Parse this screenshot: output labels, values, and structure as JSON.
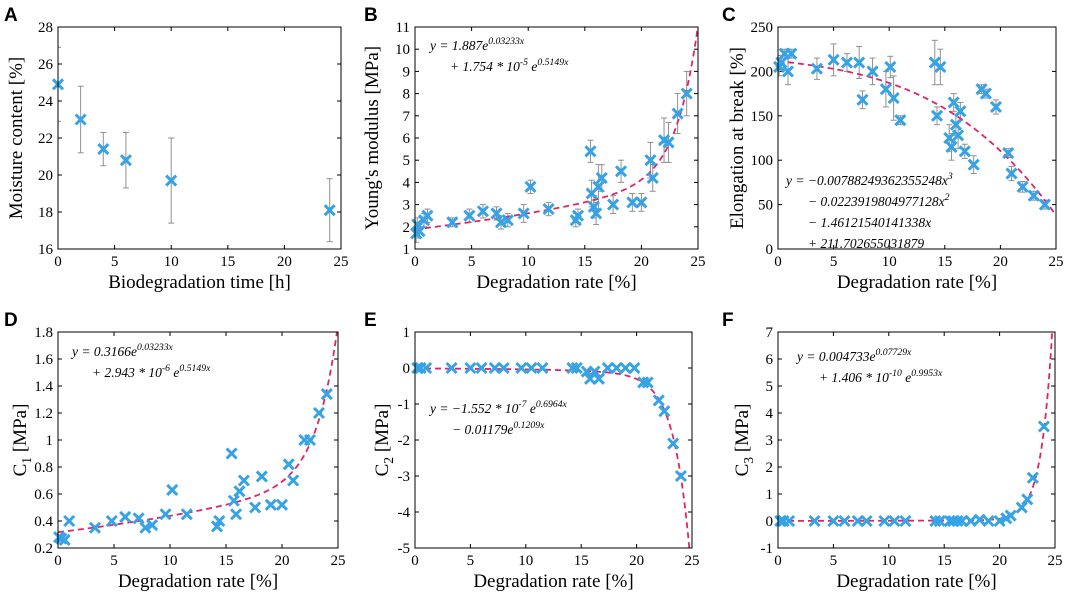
{
  "colors": {
    "marker": "#36a3e6",
    "fit": "#e0246a",
    "errorbar": "#909090"
  },
  "chart_data": [
    {
      "id": "A",
      "type": "scatter",
      "panel_label": "A",
      "xlabel": "Biodegradation time [h]",
      "ylabel": "Moisture content [%]",
      "xlim": [
        0,
        25
      ],
      "ylim": [
        16,
        28
      ],
      "xticks": [
        0,
        5,
        10,
        15,
        20,
        25
      ],
      "yticks": [
        16,
        18,
        20,
        22,
        24,
        26,
        28
      ],
      "xtick_labels": [
        "0",
        "5",
        "10",
        "15",
        "20",
        "25"
      ],
      "ytick_labels": [
        "16",
        "18",
        "20",
        "22",
        "24",
        "26",
        "28"
      ],
      "x": [
        0,
        2,
        4,
        6,
        10,
        24
      ],
      "y": [
        24.9,
        23.0,
        21.4,
        20.8,
        19.7,
        18.1
      ],
      "err": [
        2.0,
        1.8,
        0.9,
        1.5,
        2.3,
        1.7
      ],
      "equation": []
    },
    {
      "id": "B",
      "type": "scatter",
      "panel_label": "B",
      "xlabel": "Degradation rate [%]",
      "ylabel": "Young's modulus [MPa]",
      "xlim": [
        0,
        25
      ],
      "ylim": [
        1,
        11
      ],
      "xticks": [
        0,
        5,
        10,
        15,
        20,
        25
      ],
      "yticks": [
        1,
        2,
        3,
        4,
        5,
        6,
        7,
        8,
        9,
        10,
        11
      ],
      "xtick_labels": [
        "0",
        "5",
        "10",
        "15",
        "20",
        "25"
      ],
      "ytick_labels": [
        "1",
        "2",
        "3",
        "4",
        "5",
        "6",
        "7",
        "8",
        "9",
        "10",
        "11"
      ],
      "fit": {
        "a": 1.887,
        "b": 0.03233,
        "c": 1.754e-05,
        "d": 0.5149
      },
      "equation": [
        "y = 1.887e^{0.03233x}",
        "+ 1.754 * 10^{-5} e^{0.5149x}"
      ],
      "x": [
        0.1,
        0.2,
        0.4,
        0.8,
        1.1,
        3.3,
        4.8,
        6.0,
        7.2,
        7.6,
        8.2,
        9.6,
        10.2,
        11.8,
        14.2,
        14.4,
        15.5,
        15.6,
        15.8,
        16.0,
        16.2,
        16.5,
        17.5,
        18.2,
        19.2,
        20.0,
        20.8,
        21.0,
        22.0,
        22.4,
        23.2,
        24.0
      ],
      "y": [
        1.7,
        2.1,
        1.8,
        2.3,
        2.5,
        2.2,
        2.5,
        2.7,
        2.6,
        2.2,
        2.3,
        2.6,
        3.8,
        2.8,
        2.3,
        2.5,
        5.4,
        3.5,
        2.9,
        2.6,
        3.8,
        4.2,
        3.0,
        4.5,
        3.1,
        3.1,
        5.0,
        4.2,
        5.9,
        5.8,
        7.1,
        8.0
      ],
      "err": [
        0.4,
        0.3,
        0.3,
        0.3,
        0.3,
        0.2,
        0.3,
        0.3,
        0.3,
        0.3,
        0.3,
        0.4,
        0.3,
        0.3,
        0.3,
        0.3,
        0.5,
        0.6,
        0.5,
        0.5,
        1.0,
        0.6,
        0.4,
        0.5,
        0.4,
        0.4,
        0.8,
        0.6,
        1.0,
        0.9,
        0.9,
        1.0
      ]
    },
    {
      "id": "C",
      "type": "scatter",
      "panel_label": "C",
      "xlabel": "Degradation rate [%]",
      "ylabel": "Elongation at break [%]",
      "xlim": [
        0,
        25
      ],
      "ylim": [
        0,
        250
      ],
      "xticks": [
        0,
        5,
        10,
        15,
        20,
        25
      ],
      "yticks": [
        0,
        50,
        100,
        150,
        200,
        250
      ],
      "xtick_labels": [
        "0",
        "5",
        "10",
        "15",
        "20",
        "25"
      ],
      "ytick_labels": [
        "0",
        "50",
        "100",
        "150",
        "200",
        "250"
      ],
      "fit": {
        "p3": -0.00788249362355248,
        "p2": -0.0223919804977128,
        "p1": -1.46121540141338,
        "p0": 211.702655031879
      },
      "equation": [
        "y = −0.00788249362355248x^3",
        "− 0.0223919804977128x^2",
        "− 1.46121540141338x",
        "+ 211.702655031879"
      ],
      "x": [
        0.1,
        0.3,
        0.6,
        0.9,
        1.2,
        3.5,
        5.0,
        6.2,
        7.3,
        7.6,
        8.5,
        9.7,
        10.1,
        10.4,
        11.0,
        14.1,
        14.3,
        14.6,
        15.4,
        15.6,
        15.8,
        16.0,
        16.2,
        16.4,
        16.8,
        17.6,
        18.3,
        18.7,
        19.6,
        20.7,
        21.0,
        22.0,
        23.0,
        24.0
      ],
      "y": [
        205,
        210,
        220,
        200,
        220,
        203,
        213,
        210,
        210,
        168,
        200,
        180,
        205,
        170,
        145,
        210,
        150,
        205,
        125,
        115,
        165,
        140,
        128,
        155,
        110,
        95,
        180,
        175,
        160,
        108,
        85,
        70,
        60,
        50
      ],
      "err": [
        10,
        8,
        5,
        15,
        5,
        12,
        18,
        10,
        18,
        10,
        15,
        20,
        12,
        25,
        5,
        25,
        10,
        20,
        15,
        15,
        10,
        12,
        15,
        10,
        8,
        10,
        5,
        5,
        8,
        5,
        8,
        6,
        5,
        5
      ]
    },
    {
      "id": "D",
      "type": "scatter",
      "panel_label": "D",
      "xlabel": "Degradation rate [%]",
      "ylabel": "C_1 [MPa]",
      "xlim": [
        0,
        25
      ],
      "ylim": [
        0.2,
        1.8
      ],
      "xticks": [
        0,
        5,
        10,
        15,
        20,
        25
      ],
      "yticks": [
        0.2,
        0.4,
        0.6,
        0.8,
        1.0,
        1.2,
        1.4,
        1.6,
        1.8
      ],
      "xtick_labels": [
        "0",
        "5",
        "10",
        "15",
        "20",
        "25"
      ],
      "ytick_labels": [
        "0.2",
        "0.4",
        "0.6",
        "0.8",
        "1",
        "1.2",
        "1.4",
        "1.6",
        "1.8"
      ],
      "fit": {
        "a": 0.3166,
        "b": 0.03233,
        "c": 2.943e-06,
        "d": 0.5149
      },
      "equation": [
        "y = 0.3166e^{0.03233x}",
        "+ 2.943 * 10^{-6} e^{0.5149x}"
      ],
      "x": [
        0.1,
        0.3,
        0.6,
        1.0,
        3.3,
        4.8,
        6.0,
        7.2,
        7.8,
        8.4,
        9.6,
        10.2,
        11.5,
        14.2,
        14.4,
        15.5,
        15.7,
        15.9,
        16.2,
        16.6,
        17.6,
        18.2,
        19.0,
        20.0,
        20.6,
        21.0,
        22.0,
        22.5,
        23.3,
        24.0
      ],
      "y": [
        0.28,
        0.27,
        0.26,
        0.4,
        0.35,
        0.4,
        0.43,
        0.42,
        0.35,
        0.37,
        0.45,
        0.63,
        0.45,
        0.36,
        0.4,
        0.9,
        0.55,
        0.45,
        0.62,
        0.7,
        0.5,
        0.73,
        0.52,
        0.52,
        0.82,
        0.7,
        1.0,
        1.0,
        1.2,
        1.34
      ]
    },
    {
      "id": "E",
      "type": "scatter",
      "panel_label": "E",
      "xlabel": "Degradation rate [%]",
      "ylabel": "C_2 [MPa]",
      "xlim": [
        0,
        25
      ],
      "ylim": [
        -5,
        1
      ],
      "xticks": [
        0,
        5,
        10,
        15,
        20,
        25
      ],
      "yticks": [
        -5,
        -4,
        -3,
        -2,
        -1,
        0,
        1
      ],
      "xtick_labels": [
        "0",
        "5",
        "10",
        "15",
        "20",
        "25"
      ],
      "ytick_labels": [
        "-5",
        "-4",
        "-3",
        "-2",
        "-1",
        "0",
        "1"
      ],
      "fit": {
        "a": -1.552e-07,
        "b": 0.6964,
        "c": -0.01179,
        "d": 0.1209
      },
      "equation": [
        "y = −1.552 * 10^{-7} e^{0.6964x}",
        "− 0.01179e^{0.1209x}"
      ],
      "x": [
        0.2,
        0.5,
        1.0,
        3.3,
        5.0,
        6.0,
        7.2,
        8.0,
        9.6,
        10.5,
        11.5,
        14.2,
        14.6,
        15.5,
        15.8,
        16.2,
        16.6,
        17.4,
        18.2,
        19.0,
        19.8,
        20.6,
        21.0,
        22.0,
        22.5,
        23.3,
        24.0
      ],
      "y": [
        0.0,
        0.0,
        0.0,
        0.0,
        0.0,
        0.0,
        0.0,
        0.0,
        0.0,
        0.0,
        0.0,
        0.0,
        0.0,
        -0.1,
        -0.3,
        -0.1,
        -0.3,
        0.0,
        0.0,
        0.0,
        0.0,
        -0.4,
        -0.4,
        -0.9,
        -1.2,
        -2.1,
        -3.0
      ]
    },
    {
      "id": "F",
      "type": "scatter",
      "panel_label": "F",
      "xlabel": "Degradation rate [%]",
      "ylabel": "C_3 [MPa]",
      "xlim": [
        0,
        25
      ],
      "ylim": [
        -1,
        7
      ],
      "xticks": [
        0,
        5,
        10,
        15,
        20,
        25
      ],
      "yticks": [
        -1,
        0,
        1,
        2,
        3,
        4,
        5,
        6,
        7
      ],
      "xtick_labels": [
        "0",
        "5",
        "10",
        "15",
        "20",
        "25"
      ],
      "ytick_labels": [
        "-1",
        "0",
        "1",
        "2",
        "3",
        "4",
        "5",
        "6",
        "7"
      ],
      "fit": {
        "a": 0.004733,
        "b": 0.07729,
        "c": 1.406e-10,
        "d": 0.9953
      },
      "equation": [
        "y = 0.004733e^{0.07729x}",
        "+ 1.406 * 10^{-10} e^{0.9953x}"
      ],
      "x": [
        0.2,
        0.5,
        1.0,
        3.3,
        5.0,
        6.0,
        7.2,
        8.0,
        9.6,
        10.5,
        11.5,
        14.2,
        14.6,
        15.5,
        15.8,
        16.2,
        16.6,
        17.4,
        18.2,
        19.0,
        20.0,
        20.6,
        21.0,
        22.0,
        22.5,
        23.0,
        24.0
      ],
      "y": [
        0,
        0,
        0,
        0,
        0,
        0,
        0,
        0,
        0,
        0,
        0,
        0,
        0,
        0,
        0,
        0,
        0,
        0,
        0.05,
        0,
        0,
        0.1,
        0.2,
        0.5,
        0.8,
        1.6,
        3.5
      ]
    }
  ]
}
